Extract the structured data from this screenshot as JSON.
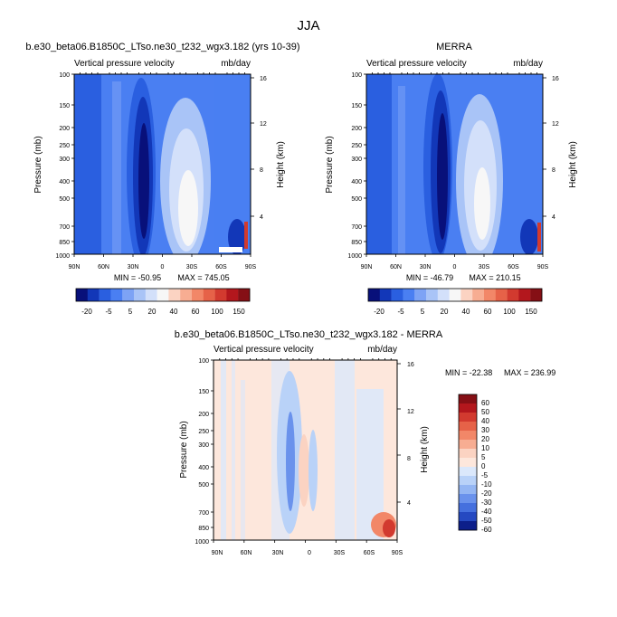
{
  "figure": {
    "season_title": "JJA"
  },
  "chart_data": [
    {
      "type": "heatmap",
      "title": "b.e30_beta06.B1850C_LTso.ne30_t232_wgx3.182 (yrs 10-39)",
      "subtitle_left": "Vertical pressure velocity",
      "subtitle_right": "mb/day",
      "ylabel": "Pressure (mb)",
      "ylabel_right": "Height (km)",
      "x_ticks": [
        "90N",
        "60N",
        "30N",
        "0",
        "30S",
        "60S",
        "90S"
      ],
      "y_ticks": [
        "100",
        "150",
        "200",
        "250",
        "300",
        "400",
        "500",
        "700",
        "850",
        "1000"
      ],
      "y_right_ticks": [
        "16",
        "12",
        "8",
        "4"
      ],
      "min_label": "MIN = -50.95",
      "max_label": "MAX = 745.05",
      "colorbar_labels": [
        "-20",
        "-5",
        "5",
        "20",
        "40",
        "60",
        "100",
        "150"
      ]
    },
    {
      "type": "heatmap",
      "title": "MERRA",
      "subtitle_left": "Vertical pressure velocity",
      "subtitle_right": "mb/day",
      "ylabel": "Pressure (mb)",
      "ylabel_right": "Height (km)",
      "x_ticks": [
        "90N",
        "60N",
        "30N",
        "0",
        "30S",
        "60S",
        "90S"
      ],
      "y_ticks": [
        "100",
        "150",
        "200",
        "250",
        "300",
        "400",
        "500",
        "700",
        "850",
        "1000"
      ],
      "y_right_ticks": [
        "16",
        "12",
        "8",
        "4"
      ],
      "min_label": "MIN = -46.79",
      "max_label": "MAX = 210.15",
      "colorbar_labels": [
        "-20",
        "-5",
        "5",
        "20",
        "40",
        "60",
        "100",
        "150"
      ]
    },
    {
      "type": "heatmap",
      "title": "b.e30_beta06.B1850C_LTso.ne30_t232_wgx3.182 - MERRA",
      "subtitle_left": "Vertical pressure velocity",
      "subtitle_right": "mb/day",
      "ylabel": "Pressure (mb)",
      "ylabel_right": "Height (km)",
      "x_ticks": [
        "90N",
        "60N",
        "30N",
        "0",
        "30S",
        "60S",
        "90S"
      ],
      "y_ticks": [
        "100",
        "150",
        "200",
        "250",
        "300",
        "400",
        "500",
        "700",
        "850",
        "1000"
      ],
      "y_right_ticks": [
        "16",
        "12",
        "8",
        "4"
      ],
      "min_label": "MIN = -22.38",
      "max_label": "MAX = 236.99",
      "colorbar_labels": [
        "60",
        "50",
        "40",
        "30",
        "20",
        "10",
        "5",
        "0",
        "-5",
        "-10",
        "-20",
        "-30",
        "-40",
        "-50",
        "-60"
      ]
    }
  ],
  "colors": {
    "abs_colorbar": [
      "#08107a",
      "#1237b8",
      "#2a5fe0",
      "#4a7ff2",
      "#7da3f5",
      "#a9c4f7",
      "#d3e0fa",
      "#f7f7f7",
      "#fbd3c2",
      "#f7ad92",
      "#f28768",
      "#e66248",
      "#d23a2f",
      "#b3171d",
      "#850f15"
    ],
    "diff_colorbar": [
      "#850f15",
      "#b3171d",
      "#d23a2f",
      "#e66248",
      "#f28768",
      "#f7ad92",
      "#fbd3c2",
      "#fde7dc",
      "#dbe8fb",
      "#b9d2f8",
      "#94b6f3",
      "#6a92ec",
      "#4570de",
      "#2549c1",
      "#0d1f8a"
    ]
  }
}
